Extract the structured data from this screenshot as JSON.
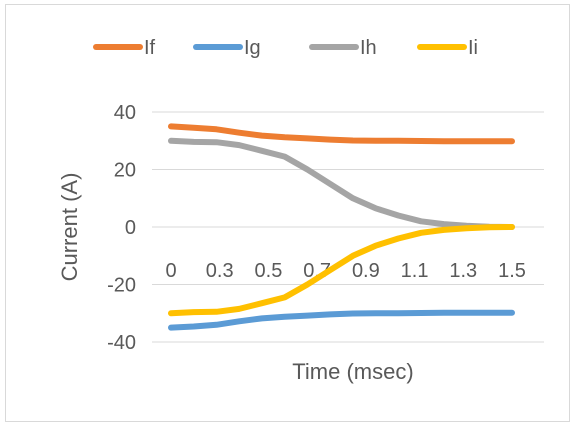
{
  "chart_data": {
    "type": "line",
    "title": "",
    "xlabel": "Time (msec)",
    "ylabel": "Current (A)",
    "ylim": [
      -40,
      40
    ],
    "yticks": [
      40,
      20,
      0,
      -20,
      -40
    ],
    "x": [
      0,
      0.1,
      0.2,
      0.3,
      0.4,
      0.5,
      0.6,
      0.7,
      0.8,
      0.9,
      1.0,
      1.1,
      1.2,
      1.3,
      1.4,
      1.5
    ],
    "xtick_labels": [
      "0",
      "0.3",
      "0.5",
      "0.7",
      "0.9",
      "1.1",
      "1.3",
      "1.5"
    ],
    "legend_position": "top",
    "grid": "horizontal",
    "series": [
      {
        "name": "If",
        "color": "#ed7d31",
        "values": [
          35,
          34.5,
          34,
          32.8,
          31.8,
          31.2,
          30.8,
          30.4,
          30.1,
          30,
          30,
          29.9,
          29.8,
          29.8,
          29.8,
          29.8
        ]
      },
      {
        "name": "Ig",
        "color": "#5b9bd5",
        "values": [
          -35,
          -34.6,
          -34,
          -32.8,
          -31.8,
          -31.2,
          -30.8,
          -30.4,
          -30.1,
          -30,
          -30,
          -29.9,
          -29.8,
          -29.8,
          -29.8,
          -29.8
        ]
      },
      {
        "name": "Ih",
        "color": "#a5a5a5",
        "values": [
          30,
          29.6,
          29.5,
          28.5,
          26.5,
          24.5,
          20,
          15,
          10,
          6.5,
          4,
          2,
          1,
          0.4,
          0.1,
          0
        ]
      },
      {
        "name": "Ii",
        "color": "#ffc000",
        "values": [
          -30,
          -29.6,
          -29.5,
          -28.5,
          -26.5,
          -24.5,
          -20,
          -15,
          -10,
          -6.5,
          -4,
          -2,
          -1,
          -0.4,
          -0.1,
          0
        ]
      }
    ]
  }
}
